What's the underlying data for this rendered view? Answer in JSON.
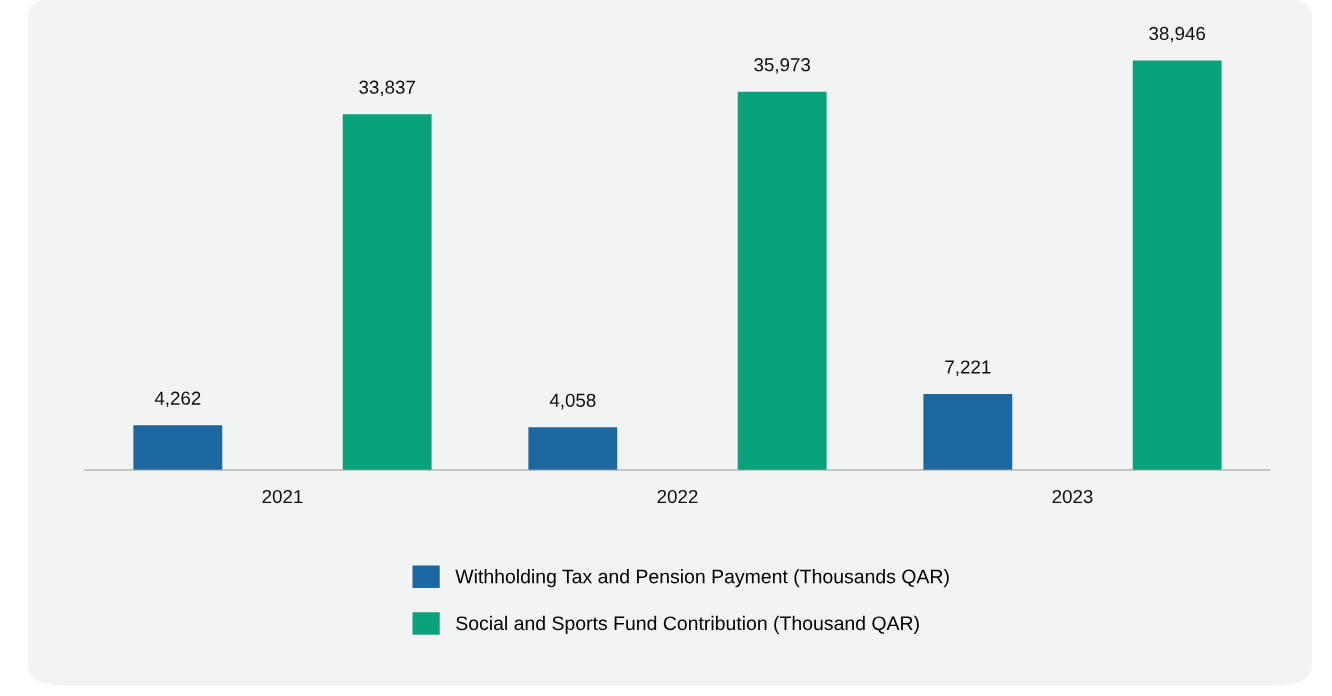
{
  "chart_data": {
    "type": "bar",
    "categories": [
      "2021",
      "2022",
      "2023"
    ],
    "series": [
      {
        "name": "Withholding Tax and Pension Payment (Thousands QAR)",
        "color": "#1d67a0",
        "values": [
          4262,
          4058,
          7221
        ],
        "value_labels": [
          "4,262",
          "4,058",
          "7,221"
        ]
      },
      {
        "name": "Social and Sports Fund Contribution (Thousand QAR)",
        "color": "#08a37a",
        "values": [
          33837,
          35973,
          38946
        ],
        "value_labels": [
          "33,837",
          "35,973",
          "38,946"
        ]
      }
    ],
    "tick_labels": "x",
    "legend": "bottom"
  }
}
